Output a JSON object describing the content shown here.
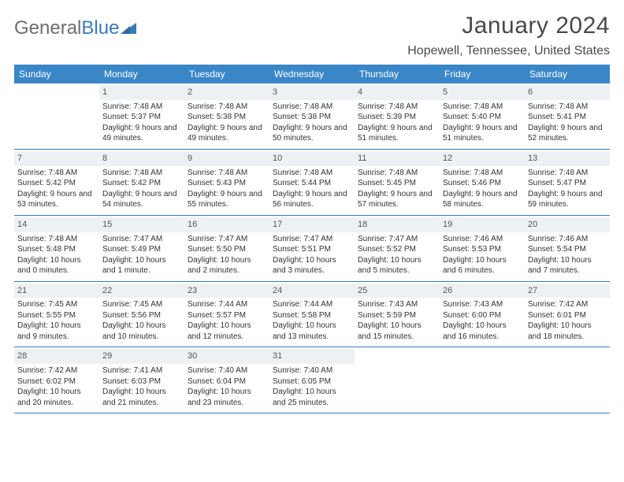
{
  "colors": {
    "header_bg": "#3a87c7",
    "header_text": "#ffffff",
    "rule": "#3a7ab8",
    "daynum_bg": "#eef1f3",
    "body_text": "#333333",
    "logo_gray": "#6d6d6d",
    "logo_blue": "#3a7ab8"
  },
  "logo": {
    "part1": "General",
    "part2": "Blue"
  },
  "title": "January 2024",
  "location": "Hopewell, Tennessee, United States",
  "day_names": [
    "Sunday",
    "Monday",
    "Tuesday",
    "Wednesday",
    "Thursday",
    "Friday",
    "Saturday"
  ],
  "weeks": [
    [
      {
        "n": "",
        "sunrise": "",
        "sunset": "",
        "daylight": ""
      },
      {
        "n": "1",
        "sunrise": "Sunrise: 7:48 AM",
        "sunset": "Sunset: 5:37 PM",
        "daylight": "Daylight: 9 hours and 49 minutes."
      },
      {
        "n": "2",
        "sunrise": "Sunrise: 7:48 AM",
        "sunset": "Sunset: 5:38 PM",
        "daylight": "Daylight: 9 hours and 49 minutes."
      },
      {
        "n": "3",
        "sunrise": "Sunrise: 7:48 AM",
        "sunset": "Sunset: 5:38 PM",
        "daylight": "Daylight: 9 hours and 50 minutes."
      },
      {
        "n": "4",
        "sunrise": "Sunrise: 7:48 AM",
        "sunset": "Sunset: 5:39 PM",
        "daylight": "Daylight: 9 hours and 51 minutes."
      },
      {
        "n": "5",
        "sunrise": "Sunrise: 7:48 AM",
        "sunset": "Sunset: 5:40 PM",
        "daylight": "Daylight: 9 hours and 51 minutes."
      },
      {
        "n": "6",
        "sunrise": "Sunrise: 7:48 AM",
        "sunset": "Sunset: 5:41 PM",
        "daylight": "Daylight: 9 hours and 52 minutes."
      }
    ],
    [
      {
        "n": "7",
        "sunrise": "Sunrise: 7:48 AM",
        "sunset": "Sunset: 5:42 PM",
        "daylight": "Daylight: 9 hours and 53 minutes."
      },
      {
        "n": "8",
        "sunrise": "Sunrise: 7:48 AM",
        "sunset": "Sunset: 5:42 PM",
        "daylight": "Daylight: 9 hours and 54 minutes."
      },
      {
        "n": "9",
        "sunrise": "Sunrise: 7:48 AM",
        "sunset": "Sunset: 5:43 PM",
        "daylight": "Daylight: 9 hours and 55 minutes."
      },
      {
        "n": "10",
        "sunrise": "Sunrise: 7:48 AM",
        "sunset": "Sunset: 5:44 PM",
        "daylight": "Daylight: 9 hours and 56 minutes."
      },
      {
        "n": "11",
        "sunrise": "Sunrise: 7:48 AM",
        "sunset": "Sunset: 5:45 PM",
        "daylight": "Daylight: 9 hours and 57 minutes."
      },
      {
        "n": "12",
        "sunrise": "Sunrise: 7:48 AM",
        "sunset": "Sunset: 5:46 PM",
        "daylight": "Daylight: 9 hours and 58 minutes."
      },
      {
        "n": "13",
        "sunrise": "Sunrise: 7:48 AM",
        "sunset": "Sunset: 5:47 PM",
        "daylight": "Daylight: 9 hours and 59 minutes."
      }
    ],
    [
      {
        "n": "14",
        "sunrise": "Sunrise: 7:48 AM",
        "sunset": "Sunset: 5:48 PM",
        "daylight": "Daylight: 10 hours and 0 minutes."
      },
      {
        "n": "15",
        "sunrise": "Sunrise: 7:47 AM",
        "sunset": "Sunset: 5:49 PM",
        "daylight": "Daylight: 10 hours and 1 minute."
      },
      {
        "n": "16",
        "sunrise": "Sunrise: 7:47 AM",
        "sunset": "Sunset: 5:50 PM",
        "daylight": "Daylight: 10 hours and 2 minutes."
      },
      {
        "n": "17",
        "sunrise": "Sunrise: 7:47 AM",
        "sunset": "Sunset: 5:51 PM",
        "daylight": "Daylight: 10 hours and 3 minutes."
      },
      {
        "n": "18",
        "sunrise": "Sunrise: 7:47 AM",
        "sunset": "Sunset: 5:52 PM",
        "daylight": "Daylight: 10 hours and 5 minutes."
      },
      {
        "n": "19",
        "sunrise": "Sunrise: 7:46 AM",
        "sunset": "Sunset: 5:53 PM",
        "daylight": "Daylight: 10 hours and 6 minutes."
      },
      {
        "n": "20",
        "sunrise": "Sunrise: 7:46 AM",
        "sunset": "Sunset: 5:54 PM",
        "daylight": "Daylight: 10 hours and 7 minutes."
      }
    ],
    [
      {
        "n": "21",
        "sunrise": "Sunrise: 7:45 AM",
        "sunset": "Sunset: 5:55 PM",
        "daylight": "Daylight: 10 hours and 9 minutes."
      },
      {
        "n": "22",
        "sunrise": "Sunrise: 7:45 AM",
        "sunset": "Sunset: 5:56 PM",
        "daylight": "Daylight: 10 hours and 10 minutes."
      },
      {
        "n": "23",
        "sunrise": "Sunrise: 7:44 AM",
        "sunset": "Sunset: 5:57 PM",
        "daylight": "Daylight: 10 hours and 12 minutes."
      },
      {
        "n": "24",
        "sunrise": "Sunrise: 7:44 AM",
        "sunset": "Sunset: 5:58 PM",
        "daylight": "Daylight: 10 hours and 13 minutes."
      },
      {
        "n": "25",
        "sunrise": "Sunrise: 7:43 AM",
        "sunset": "Sunset: 5:59 PM",
        "daylight": "Daylight: 10 hours and 15 minutes."
      },
      {
        "n": "26",
        "sunrise": "Sunrise: 7:43 AM",
        "sunset": "Sunset: 6:00 PM",
        "daylight": "Daylight: 10 hours and 16 minutes."
      },
      {
        "n": "27",
        "sunrise": "Sunrise: 7:42 AM",
        "sunset": "Sunset: 6:01 PM",
        "daylight": "Daylight: 10 hours and 18 minutes."
      }
    ],
    [
      {
        "n": "28",
        "sunrise": "Sunrise: 7:42 AM",
        "sunset": "Sunset: 6:02 PM",
        "daylight": "Daylight: 10 hours and 20 minutes."
      },
      {
        "n": "29",
        "sunrise": "Sunrise: 7:41 AM",
        "sunset": "Sunset: 6:03 PM",
        "daylight": "Daylight: 10 hours and 21 minutes."
      },
      {
        "n": "30",
        "sunrise": "Sunrise: 7:40 AM",
        "sunset": "Sunset: 6:04 PM",
        "daylight": "Daylight: 10 hours and 23 minutes."
      },
      {
        "n": "31",
        "sunrise": "Sunrise: 7:40 AM",
        "sunset": "Sunset: 6:05 PM",
        "daylight": "Daylight: 10 hours and 25 minutes."
      },
      {
        "n": "",
        "sunrise": "",
        "sunset": "",
        "daylight": ""
      },
      {
        "n": "",
        "sunrise": "",
        "sunset": "",
        "daylight": ""
      },
      {
        "n": "",
        "sunrise": "",
        "sunset": "",
        "daylight": ""
      }
    ]
  ]
}
